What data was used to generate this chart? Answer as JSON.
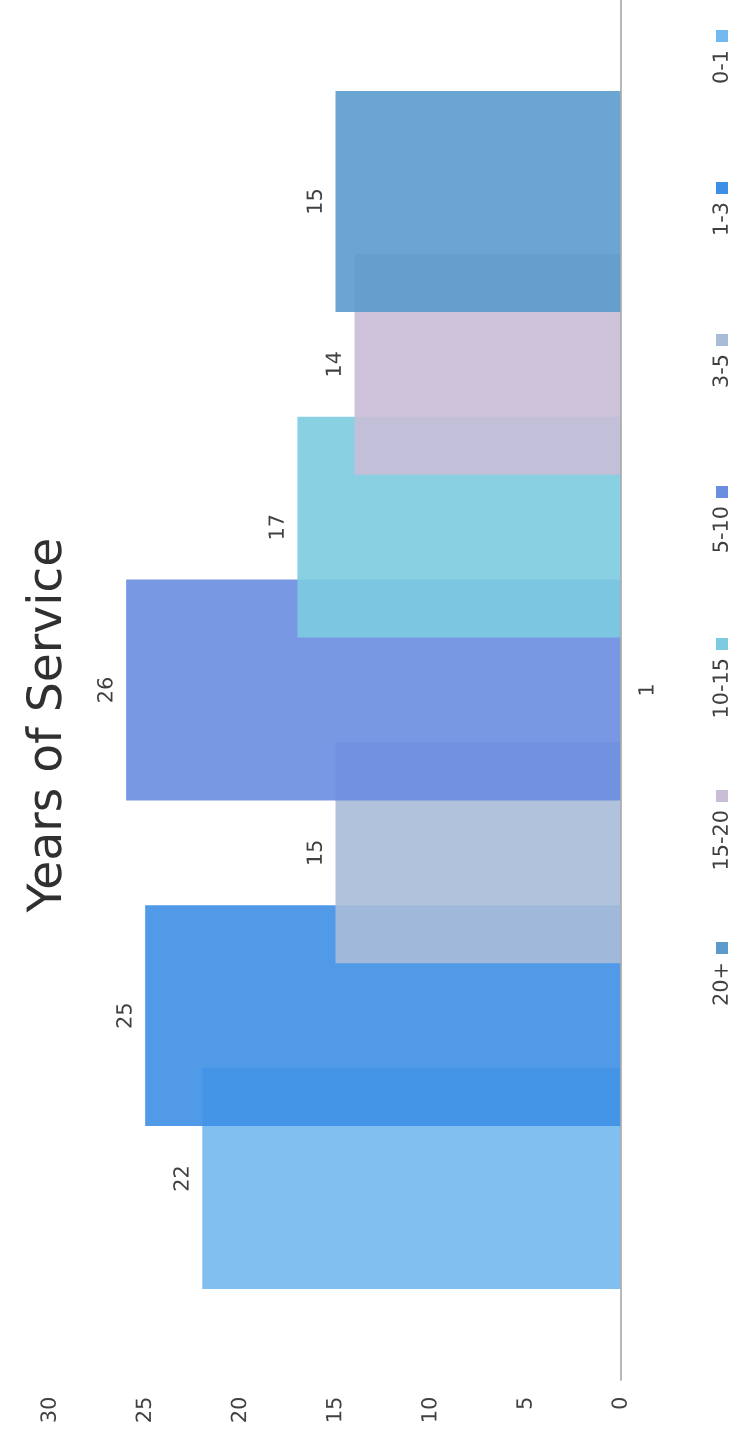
{
  "chart_data": {
    "type": "bar",
    "orientation": "horizontal",
    "title": "Years of Service",
    "categories": [
      "1"
    ],
    "series": [
      {
        "name": "0-1",
        "color": "#74b8f0",
        "values": [
          22
        ]
      },
      {
        "name": "1-3",
        "color": "#3d8fe6",
        "values": [
          25
        ]
      },
      {
        "name": "3-5",
        "color": "#a8bcd8",
        "values": [
          15
        ]
      },
      {
        "name": "5-10",
        "color": "#6a8de0",
        "values": [
          26
        ]
      },
      {
        "name": "10-15",
        "color": "#7ccbe0",
        "values": [
          17
        ]
      },
      {
        "name": "15-20",
        "color": "#c9bdd6",
        "values": [
          14
        ]
      },
      {
        "name": "20+",
        "color": "#5b9bcc",
        "values": [
          15
        ]
      }
    ],
    "xlim": [
      30,
      0
    ],
    "xticks": [
      0,
      5,
      10,
      15,
      20,
      25,
      30
    ],
    "data_labels": true,
    "legend": "right",
    "grid": false
  }
}
